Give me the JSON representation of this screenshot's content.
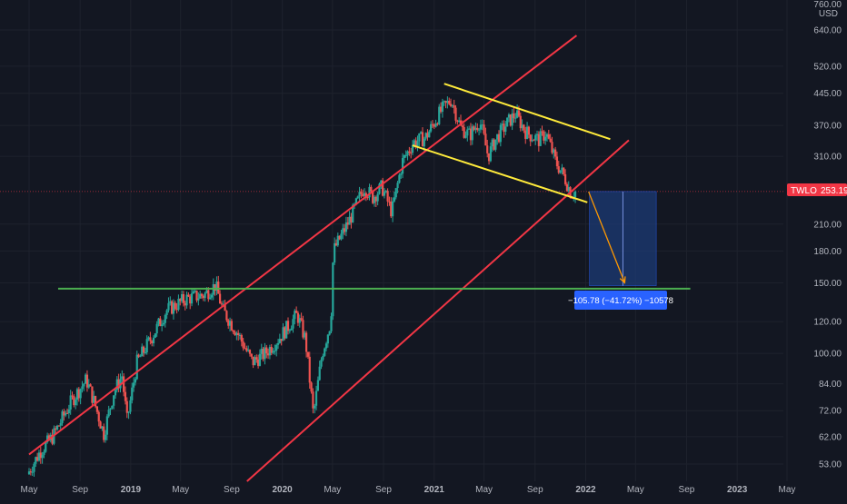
{
  "colors": {
    "background": "#131722",
    "grid": "#1e222d",
    "axis_text": "#b2b5be",
    "candle_up": "#26a69a",
    "candle_down": "#ef5350",
    "channel_line": "#f23645",
    "wedge_line": "#ffeb3b",
    "support_line": "#4caf50",
    "price_line": "#f23645",
    "projection_box": "#1c3a75",
    "projection_border": "#2962ff",
    "arrow": "#ff9800"
  },
  "price_axis": {
    "unit": "USD",
    "top_label": "760.00"
  },
  "price_badge": {
    "symbol": "TWLO",
    "price": "253.19"
  },
  "projection": {
    "label": "−105.78 (−41.72%) −10578"
  },
  "chart_data": {
    "type": "candlestick",
    "scale": "log",
    "ylim": [
      48,
      760
    ],
    "x_range": [
      "2018-05-01",
      "2023-08-01"
    ],
    "y_ticks": [
      53,
      62,
      72,
      84,
      100,
      120,
      150,
      180,
      210,
      253.19,
      310,
      370,
      445,
      520,
      640
    ],
    "y_tick_labels": [
      "53.00",
      "62.00",
      "72.00",
      "84.00",
      "100.00",
      "120.00",
      "150.00",
      "180.00",
      "210.00",
      "",
      "310.00",
      "370.00",
      "445.00",
      "520.00",
      "640.00"
    ],
    "x_ticks": [
      {
        "date": "2018-05-01",
        "label": "May",
        "bold": false
      },
      {
        "date": "2018-09-01",
        "label": "Sep",
        "bold": false
      },
      {
        "date": "2019-01-01",
        "label": "2019",
        "bold": true
      },
      {
        "date": "2019-05-01",
        "label": "May",
        "bold": false
      },
      {
        "date": "2019-09-01",
        "label": "Sep",
        "bold": false
      },
      {
        "date": "2020-01-01",
        "label": "2020",
        "bold": true
      },
      {
        "date": "2020-05-01",
        "label": "May",
        "bold": false
      },
      {
        "date": "2020-09-01",
        "label": "Sep",
        "bold": false
      },
      {
        "date": "2021-01-01",
        "label": "2021",
        "bold": true
      },
      {
        "date": "2021-05-01",
        "label": "May",
        "bold": false
      },
      {
        "date": "2021-09-01",
        "label": "Sep",
        "bold": false
      },
      {
        "date": "2022-01-01",
        "label": "2022",
        "bold": true
      },
      {
        "date": "2022-05-01",
        "label": "May",
        "bold": false
      },
      {
        "date": "2022-09-01",
        "label": "Sep",
        "bold": false
      },
      {
        "date": "2023-01-01",
        "label": "2023",
        "bold": true
      },
      {
        "date": "2023-05-01",
        "label": "May",
        "bold": false
      }
    ],
    "price_path": [
      [
        "2018-05-01",
        50
      ],
      [
        "2018-06-01",
        57
      ],
      [
        "2018-07-01",
        62
      ],
      [
        "2018-08-15",
        76
      ],
      [
        "2018-09-20",
        86
      ],
      [
        "2018-10-10",
        75
      ],
      [
        "2018-11-01",
        63
      ],
      [
        "2018-11-25",
        80
      ],
      [
        "2018-12-15",
        88
      ],
      [
        "2018-12-27",
        68
      ],
      [
        "2019-01-20",
        95
      ],
      [
        "2019-02-25",
        110
      ],
      [
        "2019-04-01",
        128
      ],
      [
        "2019-05-20",
        137
      ],
      [
        "2019-07-01",
        140
      ],
      [
        "2019-07-28",
        148
      ],
      [
        "2019-08-15",
        128
      ],
      [
        "2019-09-20",
        112
      ],
      [
        "2019-10-25",
        95
      ],
      [
        "2019-11-25",
        100
      ],
      [
        "2019-12-31",
        110
      ],
      [
        "2020-02-10",
        125
      ],
      [
        "2020-03-01",
        108
      ],
      [
        "2020-03-20",
        70
      ],
      [
        "2020-04-10",
        100
      ],
      [
        "2020-05-01",
        120
      ],
      [
        "2020-05-07",
        180
      ],
      [
        "2020-06-15",
        215
      ],
      [
        "2020-07-20",
        260
      ],
      [
        "2020-08-10",
        245
      ],
      [
        "2020-09-01",
        260
      ],
      [
        "2020-09-25",
        225
      ],
      [
        "2020-10-20",
        300
      ],
      [
        "2020-11-15",
        335
      ],
      [
        "2020-12-15",
        345
      ],
      [
        "2021-01-20",
        400
      ],
      [
        "2021-02-15",
        430
      ],
      [
        "2021-03-10",
        365
      ],
      [
        "2021-04-01",
        350
      ],
      [
        "2021-04-25",
        380
      ],
      [
        "2021-05-15",
        310
      ],
      [
        "2021-06-01",
        340
      ],
      [
        "2021-06-30",
        375
      ],
      [
        "2021-07-20",
        395
      ],
      [
        "2021-08-15",
        355
      ],
      [
        "2021-09-15",
        340
      ],
      [
        "2021-10-01",
        355
      ],
      [
        "2021-10-25",
        300
      ],
      [
        "2021-11-15",
        275
      ],
      [
        "2021-12-01",
        250
      ],
      [
        "2021-12-10",
        253
      ]
    ],
    "trend_lines": [
      {
        "kind": "channel",
        "from": [
          "2018-05-01",
          56
        ],
        "to": [
          "2021-12-10",
          620
        ]
      },
      {
        "kind": "channel",
        "from": [
          "2019-10-08",
          48
        ],
        "to": [
          "2022-04-15",
          340
        ]
      },
      {
        "kind": "wedge",
        "from": [
          "2021-01-25",
          470
        ],
        "to": [
          "2022-03-01",
          342
        ]
      },
      {
        "kind": "wedge",
        "from": [
          "2020-11-10",
          330
        ],
        "to": [
          "2022-01-05",
          238
        ]
      },
      {
        "kind": "support",
        "from": [
          "2018-07-10",
          145
        ],
        "to": [
          "2022-09-10",
          145
        ]
      }
    ],
    "projection": {
      "from_date": "2022-01-10",
      "to_date": "2022-06-20",
      "top": 253.19,
      "bottom": 147.41,
      "change": -105.78,
      "change_pct": -41.72,
      "ticks": -10578
    },
    "arrow": {
      "from": [
        "2022-01-08",
        253
      ],
      "to": [
        "2022-04-05",
        150
      ]
    },
    "last_price": 253.19
  }
}
